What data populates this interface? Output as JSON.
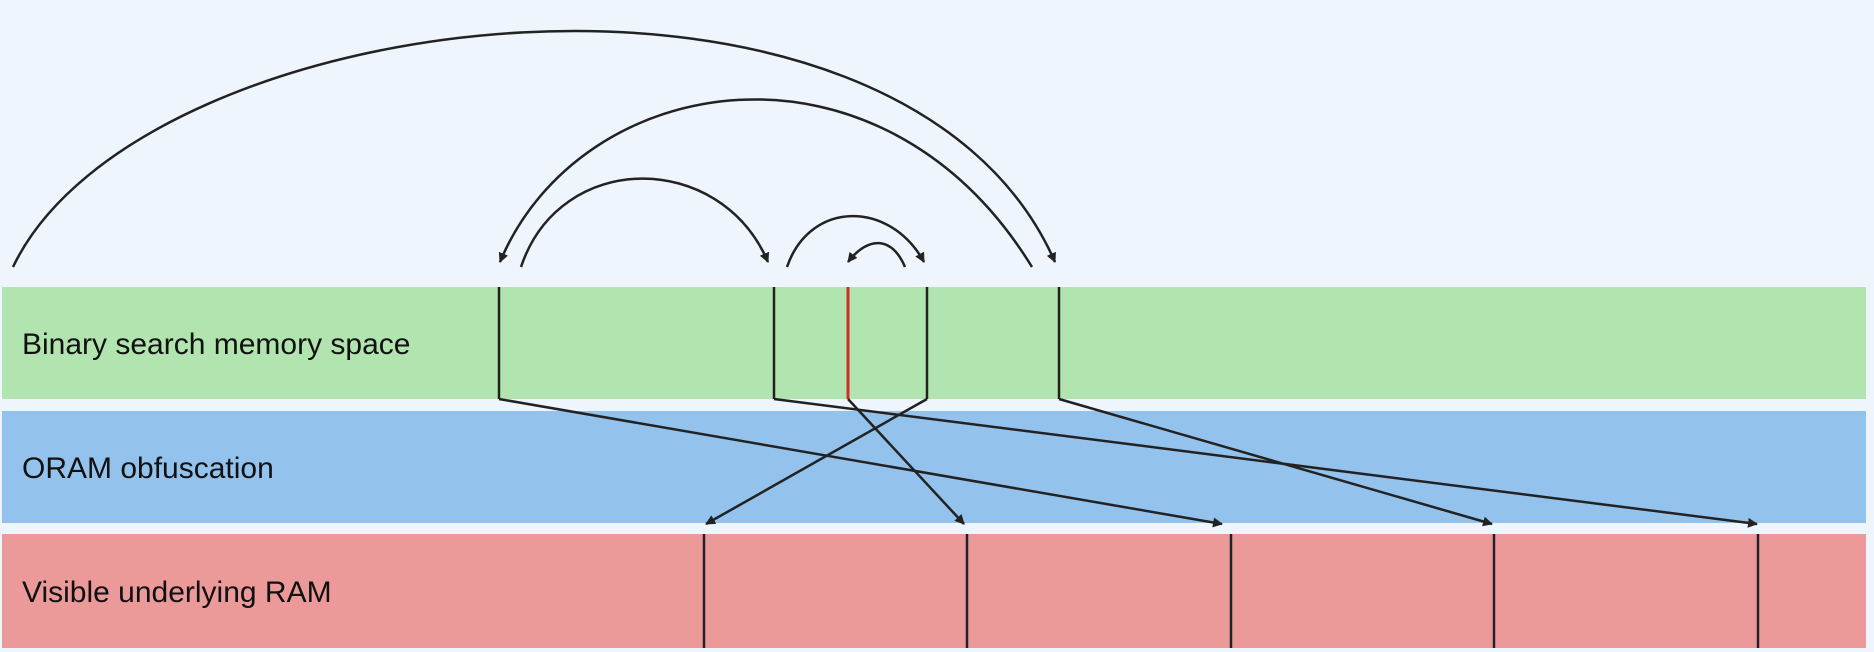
{
  "bands": [
    {
      "id": "memory",
      "label": "Binary search memory space",
      "color": "#b1e4ae"
    },
    {
      "id": "oram",
      "label": "ORAM obfuscation",
      "color": "#93c2ec"
    },
    {
      "id": "ram",
      "label": "Visible underlying RAM",
      "color": "#ec999a"
    }
  ],
  "colors": {
    "background": "#eef5fc",
    "stroke": "#222222",
    "highlight": "#d22d2d"
  }
}
